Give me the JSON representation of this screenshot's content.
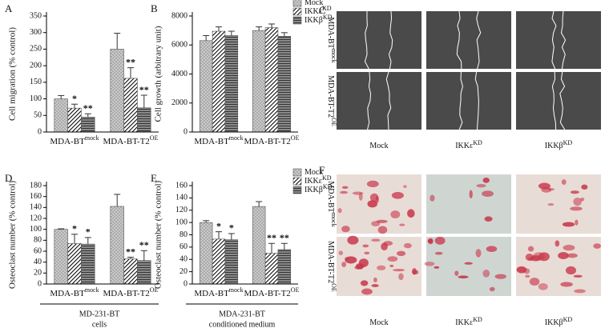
{
  "chart_data": [
    {
      "type": "bar",
      "panel": "A",
      "y_label": "Cell migration (% control)",
      "categories": [
        "MDA-BT",
        "MDA-BT-T2"
      ],
      "category_superscripts": [
        "mock",
        "OE"
      ],
      "ylim": [
        0,
        350
      ],
      "yticks": [
        0,
        50,
        100,
        150,
        200,
        250,
        300,
        350
      ],
      "series": [
        {
          "name": "Mock",
          "color": "#c8c8c8",
          "values": [
            100,
            250
          ],
          "errors": [
            10,
            48
          ]
        },
        {
          "name": "IKKε",
          "name_superscript": "KD",
          "color": "#ffffff",
          "values": [
            72,
            162
          ],
          "errors": [
            12,
            32
          ],
          "stars": [
            "*",
            "**"
          ]
        },
        {
          "name": "IKKβ",
          "name_superscript": "KD",
          "color": "#8a8a8a",
          "values": [
            45,
            73
          ],
          "errors": [
            10,
            38
          ],
          "stars": [
            "**",
            "**"
          ]
        }
      ]
    },
    {
      "type": "bar",
      "panel": "B",
      "y_label": "Cell growth (arbitrary unit)",
      "categories": [
        "MDA-BT",
        "MDA-BT-T2"
      ],
      "category_superscripts": [
        "mock",
        "OE"
      ],
      "ylim": [
        0,
        8000
      ],
      "yticks": [
        0,
        2000,
        4000,
        6000,
        8000
      ],
      "legend": "upper right",
      "series": [
        {
          "name": "Mock",
          "color": "#c8c8c8",
          "values": [
            6300,
            7000
          ],
          "errors": [
            350,
            250
          ]
        },
        {
          "name": "IKKε",
          "name_superscript": "KD",
          "color": "#ffffff",
          "values": [
            6950,
            7200
          ],
          "errors": [
            300,
            250
          ]
        },
        {
          "name": "IKKβ",
          "name_superscript": "KD",
          "color": "#8a8a8a",
          "values": [
            6650,
            6600
          ],
          "errors": [
            300,
            250
          ]
        }
      ]
    },
    {
      "type": "bar",
      "panel": "D",
      "y_label": "Osteoclast number (% control)",
      "categories": [
        "MDA-BT",
        "MDA-BT-T2"
      ],
      "category_superscripts": [
        "mock",
        "OE"
      ],
      "ylim": [
        0,
        180
      ],
      "yticks": [
        0,
        20,
        40,
        60,
        80,
        100,
        120,
        140,
        160,
        180
      ],
      "footer": [
        "MD-231-BT",
        "cells"
      ],
      "series": [
        {
          "name": "Mock",
          "color": "#c8c8c8",
          "values": [
            100,
            142
          ],
          "errors": [
            1,
            22
          ]
        },
        {
          "name": "IKKε",
          "name_superscript": "KD",
          "color": "#ffffff",
          "values": [
            74,
            46
          ],
          "errors": [
            17,
            3
          ],
          "stars": [
            "*",
            "**"
          ]
        },
        {
          "name": "IKKβ",
          "name_superscript": "KD",
          "color": "#8a8a8a",
          "values": [
            73,
            43
          ],
          "errors": [
            12,
            18
          ],
          "stars": [
            "*",
            "**"
          ]
        }
      ]
    },
    {
      "type": "bar",
      "panel": "E",
      "y_label": "Osteoclast number (% control)",
      "categories": [
        "MDA-BT",
        "MDA-BT-T2"
      ],
      "category_superscripts": [
        "mock",
        "OE"
      ],
      "ylim": [
        0,
        160
      ],
      "yticks": [
        0,
        20,
        40,
        60,
        80,
        100,
        120,
        140,
        160
      ],
      "legend": "upper right",
      "footer": [
        "MDA-231-BT",
        "conditioned medium"
      ],
      "series": [
        {
          "name": "Mock",
          "color": "#c8c8c8",
          "values": [
            100,
            126
          ],
          "errors": [
            3,
            8
          ]
        },
        {
          "name": "IKKε",
          "name_superscript": "KD",
          "color": "#ffffff",
          "values": [
            73,
            50
          ],
          "errors": [
            12,
            16
          ],
          "stars": [
            "*",
            "**"
          ]
        },
        {
          "name": "IKKβ",
          "name_superscript": "KD",
          "color": "#8a8a8a",
          "values": [
            72,
            56
          ],
          "errors": [
            10,
            10
          ],
          "stars": [
            "*",
            "**"
          ]
        }
      ]
    }
  ],
  "image_panels": [
    {
      "panel": "C",
      "rows": [
        {
          "label": "MDA-BT",
          "superscript": "mock"
        },
        {
          "label": "MDA-BT-T2",
          "superscript": "OE"
        }
      ],
      "columns": [
        {
          "label": "Mock"
        },
        {
          "label": "IKKε",
          "superscript": "KD"
        },
        {
          "label": "IKKβ",
          "superscript": "KD"
        }
      ]
    },
    {
      "panel": "F",
      "rows": [
        {
          "label": "MDA-BT",
          "superscript": "mock"
        },
        {
          "label": "MDA-BT-T2",
          "superscript": "OE"
        }
      ],
      "columns": [
        {
          "label": "Mock"
        },
        {
          "label": "IKKε",
          "superscript": "KD"
        },
        {
          "label": "IKKβ",
          "superscript": "KD"
        }
      ]
    }
  ]
}
